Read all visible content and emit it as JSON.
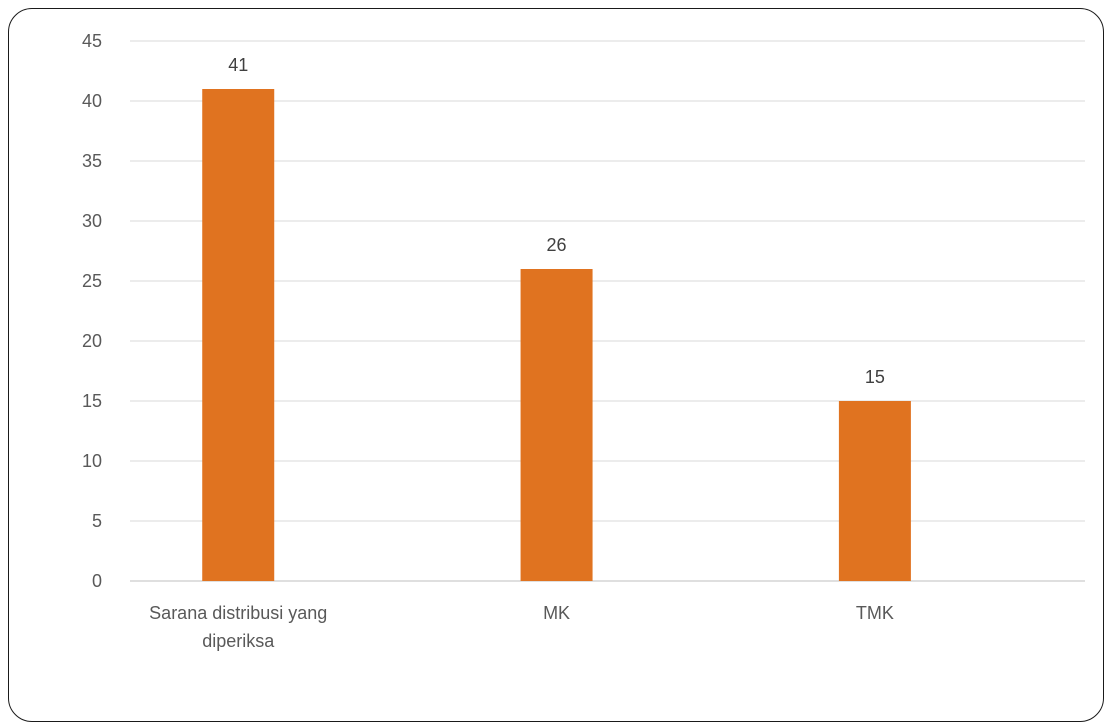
{
  "chart_data": {
    "type": "bar",
    "title": "",
    "xlabel": "",
    "ylabel": "",
    "categories": [
      [
        "Sarana distribusi yang",
        "diperiksa"
      ],
      [
        "MK"
      ],
      [
        "TMK"
      ]
    ],
    "values": [
      41,
      26,
      15
    ],
    "data_labels": [
      "41",
      "26",
      "15"
    ],
    "ylim": [
      0,
      45
    ],
    "yticks": [
      "0",
      "5",
      "10",
      "15",
      "20",
      "25",
      "30",
      "35",
      "40",
      "45"
    ],
    "ytick_values": [
      0,
      5,
      10,
      15,
      20,
      25,
      30,
      35,
      40,
      45
    ],
    "grid": true,
    "legend": "none",
    "colors": {
      "bar": "#E07320",
      "grid": "#D9D9D9",
      "axis": "#BFBFBF",
      "frame": "#1A1A1A"
    }
  }
}
